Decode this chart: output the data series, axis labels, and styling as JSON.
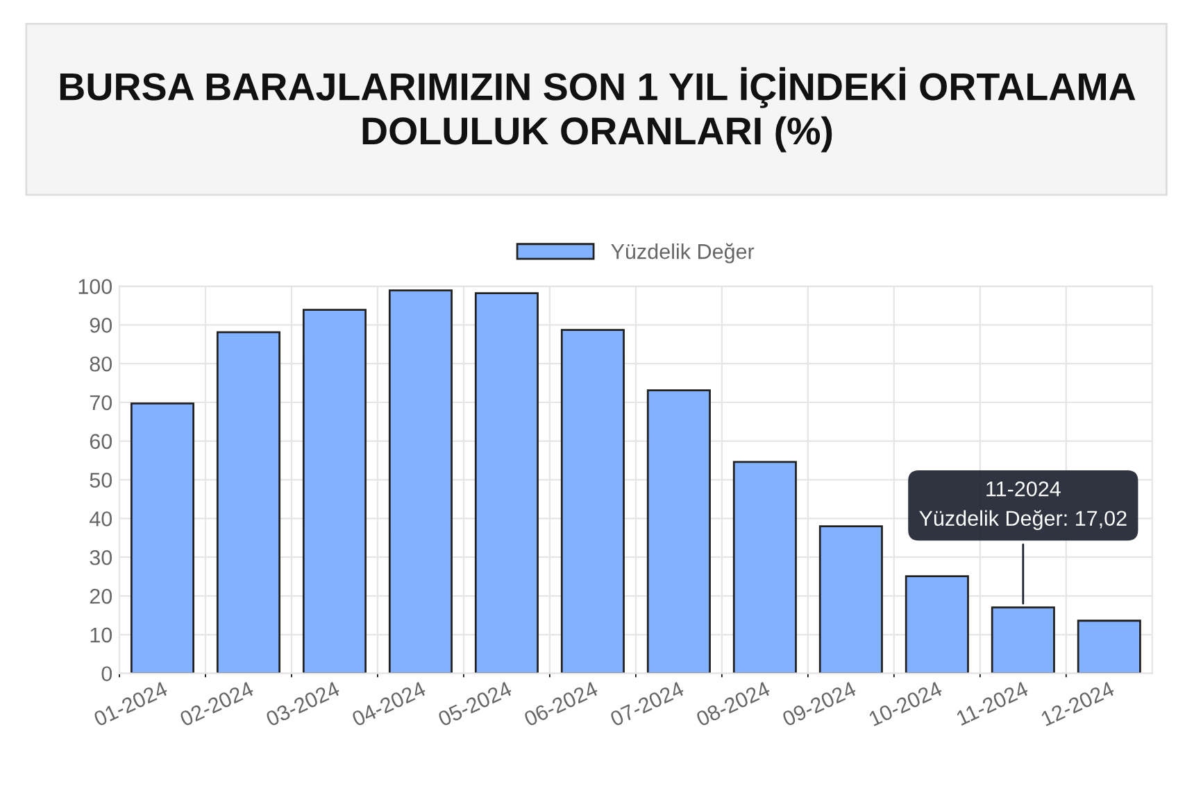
{
  "chart_data": {
    "type": "bar",
    "title": "BURSA BARAJLARIMIZIN SON 1 YIL İÇİNDEKİ ORTALAMA\nDOLULUK ORANLARI (%)",
    "categories": [
      "01-2024",
      "02-2024",
      "03-2024",
      "04-2024",
      "05-2024",
      "06-2024",
      "07-2024",
      "08-2024",
      "09-2024",
      "10-2024",
      "11-2024",
      "12-2024"
    ],
    "series": [
      {
        "name": "Yüzdelik Değer",
        "color": "#82b1ff",
        "values": [
          69.7,
          88.1,
          93.9,
          98.9,
          98.2,
          88.7,
          73.1,
          54.6,
          38.0,
          25.1,
          17.02,
          13.6
        ]
      }
    ],
    "ylim": [
      0,
      100
    ],
    "yticks": [
      0,
      10,
      20,
      30,
      40,
      50,
      60,
      70,
      80,
      90,
      100
    ],
    "grid": true,
    "legend": "top",
    "annotations": [
      {
        "text": "11-2024\nYüzdelik Değer: 17,02",
        "x": "11-2024",
        "y": 17.02
      }
    ]
  }
}
